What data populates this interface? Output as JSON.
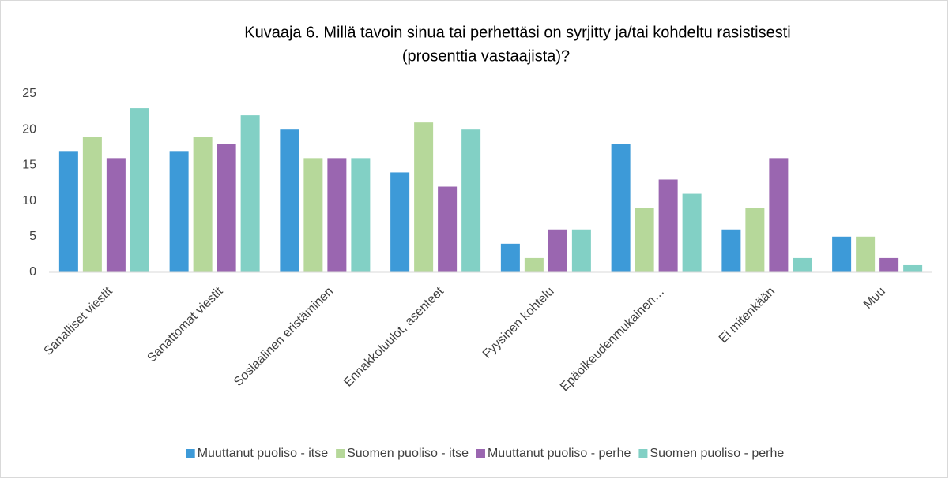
{
  "chart_data": {
    "type": "bar",
    "title": [
      "Kuvaaja 6. Millä tavoin sinua tai perhettäsi on syrjitty ja/tai kohdeltu rasistisesti",
      "(prosenttia vastaajista)?"
    ],
    "categories": [
      "Sanalliset viestit",
      "Sanattomat viestit",
      "Sosiaalinen eristäminen",
      "Ennakkoluulot, asenteet",
      "Fyysinen kohtelu",
      "Epäoikeudenmukainen…",
      "Ei mitenkään",
      "Muu"
    ],
    "series": [
      {
        "name": "Muuttanut puoliso - itse",
        "color": "#3d9ad8",
        "values": [
          17,
          17,
          20,
          14,
          4,
          18,
          6,
          5
        ]
      },
      {
        "name": "Suomen puoliso - itse",
        "color": "#b6d89a",
        "values": [
          19,
          19,
          16,
          21,
          2,
          9,
          9,
          5
        ]
      },
      {
        "name": "Muuttanut puoliso - perhe",
        "color": "#9a66b0",
        "values": [
          16,
          18,
          16,
          12,
          6,
          13,
          16,
          2
        ]
      },
      {
        "name": "Suomen puoliso - perhe",
        "color": "#82d0c5",
        "values": [
          23,
          22,
          16,
          20,
          6,
          11,
          2,
          1
        ]
      }
    ],
    "ylim": [
      0,
      25
    ],
    "yticks": [
      0,
      5,
      10,
      15,
      20,
      25
    ],
    "grid": false,
    "legend": "bottom"
  }
}
